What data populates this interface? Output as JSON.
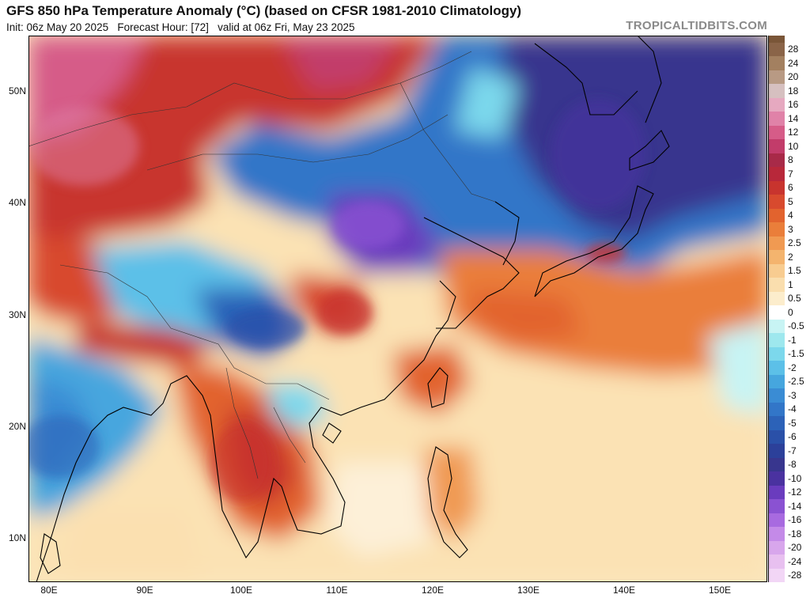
{
  "header": {
    "title": "GFS 850 hPa Temperature Anomaly (°C) (based on CFSR 1981-2010 Climatology)",
    "subtitle": "Init: 06z May 20 2025   Forecast Hour: [72]   valid at 06z Fri, May 23 2025",
    "brand": "TROPICALTIDBITS.COM"
  },
  "map": {
    "lat_labels": [
      "50N",
      "40N",
      "30N",
      "20N",
      "10N"
    ],
    "lon_labels": [
      "80E",
      "90E",
      "100E",
      "110E",
      "120E",
      "130E",
      "140E",
      "150E"
    ]
  },
  "colorbar": {
    "labels": [
      "28",
      "24",
      "20",
      "18",
      "16",
      "14",
      "12",
      "10",
      "8",
      "7",
      "6",
      "5",
      "4",
      "3",
      "2.5",
      "2",
      "1.5",
      "1",
      "0.5",
      "0",
      "-0.5",
      "-1",
      "-1.5",
      "-2",
      "-2.5",
      "-3",
      "-4",
      "-5",
      "-6",
      "-7",
      "-8",
      "-10",
      "-12",
      "-14",
      "-16",
      "-18",
      "-20",
      "-24",
      "-28"
    ],
    "colors": [
      "#8a6448",
      "#a38060",
      "#b89a84",
      "#d6c0c0",
      "#e6a9c0",
      "#e082a8",
      "#d65c88",
      "#c23c6a",
      "#a82a48",
      "#b8283a",
      "#c8342e",
      "#d84a2e",
      "#e2632e",
      "#ea7e3a",
      "#f09a52",
      "#f4b46e",
      "#f8cc90",
      "#fadeae",
      "#fcedcc",
      "#ffffff",
      "#c8f4f4",
      "#9ee8ee",
      "#7cd8ec",
      "#5cc0e8",
      "#46a6de",
      "#3a8cd4",
      "#3276c8",
      "#2c62b8",
      "#2a50a8",
      "#2c409a",
      "#38368e",
      "#4a32a0",
      "#6a3cbe",
      "#8a52d2",
      "#a86ae0",
      "#c48ae8",
      "#d8a6ec",
      "#e8c0f0",
      "#f2d6f6"
    ]
  }
}
